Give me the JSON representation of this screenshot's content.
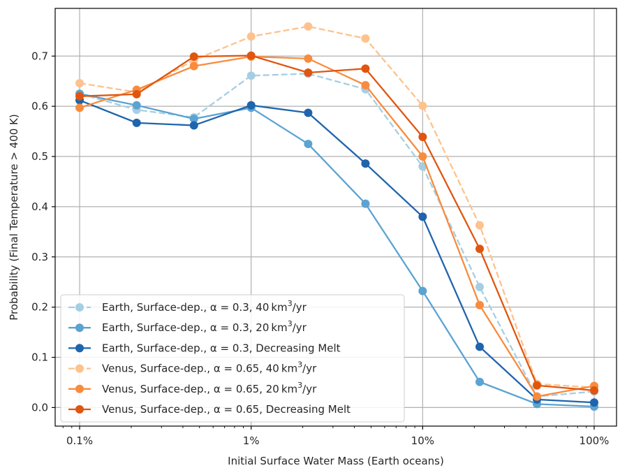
{
  "chart_data": {
    "type": "line",
    "title": "",
    "xlabel": "Initial Surface Water Mass (Earth oceans)",
    "ylabel": "Probability (Final Temperature > 400 K)",
    "xscale": "log",
    "xlim": [
      0.00072,
      1.35
    ],
    "ylim": [
      -0.037,
      0.795
    ],
    "x_ticks": [
      0.001,
      0.01,
      0.1,
      1.0
    ],
    "x_tick_labels": [
      "0.1%",
      "1%",
      "10%",
      "100%"
    ],
    "y_ticks": [
      0.0,
      0.1,
      0.2,
      0.3,
      0.4,
      0.5,
      0.6,
      0.7
    ],
    "y_tick_labels": [
      "0.0",
      "0.1",
      "0.2",
      "0.3",
      "0.4",
      "0.5",
      "0.6",
      "0.7"
    ],
    "grid": true,
    "legend_position": "lower-left",
    "x": [
      0.001,
      0.00215,
      0.00464,
      0.01,
      0.0215,
      0.0464,
      0.1,
      0.215,
      0.464,
      1.0
    ],
    "series": [
      {
        "name": "Earth, Surface-dep., α = 0.3, 40 km³/yr",
        "label_prefix": "Earth, Surface-dep., α = 0.3, 40",
        "label_suffix": "km",
        "label_sup": "3",
        "label_tail": "/yr",
        "color": "#a6cee3",
        "dashed": true,
        "values": [
          0.625,
          0.593,
          0.578,
          0.661,
          0.665,
          0.634,
          0.48,
          0.24,
          0.022,
          0.032
        ]
      },
      {
        "name": "Earth, Surface-dep., α = 0.3, 20 km³/yr",
        "label_prefix": "Earth, Surface-dep., α = 0.3, 20",
        "label_suffix": "km",
        "label_sup": "3",
        "label_tail": "/yr",
        "color": "#5ba3d1",
        "dashed": false,
        "values": [
          0.625,
          0.602,
          0.575,
          0.597,
          0.525,
          0.406,
          0.232,
          0.051,
          0.007,
          0.002
        ]
      },
      {
        "name": "Earth, Surface-dep., α = 0.3, Decreasing Melt",
        "label_prefix": "Earth, Surface-dep., α = 0.3, Decreasing Melt",
        "label_suffix": "",
        "label_sup": "",
        "label_tail": "",
        "color": "#1f64ad",
        "dashed": false,
        "values": [
          0.612,
          0.567,
          0.562,
          0.602,
          0.587,
          0.486,
          0.38,
          0.121,
          0.016,
          0.01
        ]
      },
      {
        "name": "Venus, Surface-dep., α = 0.65, 40 km³/yr",
        "label_prefix": "Venus, Surface-dep., α = 0.65, 40",
        "label_suffix": "km",
        "label_sup": "3",
        "label_tail": "/yr",
        "color": "#fdc28d",
        "dashed": true,
        "values": [
          0.646,
          0.628,
          0.692,
          0.739,
          0.759,
          0.735,
          0.601,
          0.363,
          0.047,
          0.04
        ]
      },
      {
        "name": "Venus, Surface-dep., α = 0.65, 20 km³/yr",
        "label_prefix": "Venus, Surface-dep., α = 0.65, 20",
        "label_suffix": "km",
        "label_sup": "3",
        "label_tail": "/yr",
        "color": "#f98b3d",
        "dashed": false,
        "values": [
          0.597,
          0.633,
          0.68,
          0.699,
          0.695,
          0.642,
          0.5,
          0.204,
          0.022,
          0.043
        ]
      },
      {
        "name": "Venus, Surface-dep., α = 0.65, Decreasing Melt",
        "label_prefix": "Venus, Surface-dep., α = 0.65, Decreasing Melt",
        "label_suffix": "",
        "label_sup": "",
        "label_tail": "",
        "color": "#e0560f",
        "dashed": false,
        "values": [
          0.62,
          0.624,
          0.699,
          0.701,
          0.667,
          0.675,
          0.539,
          0.316,
          0.044,
          0.034
        ]
      }
    ]
  }
}
